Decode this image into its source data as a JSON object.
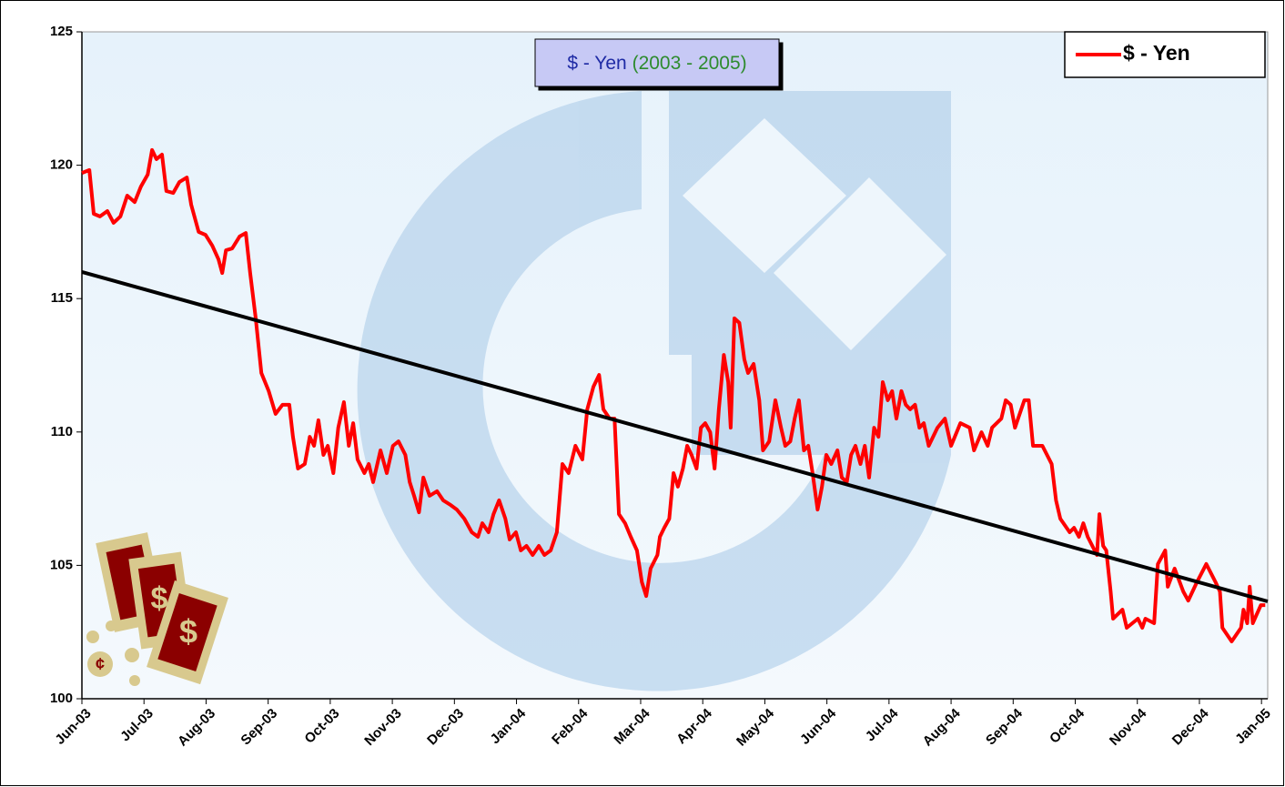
{
  "chart_data": {
    "type": "line",
    "title": "$ - Yen",
    "title_suffix": "(2003 - 2005)",
    "legend": "top-right",
    "ylim": [
      100,
      125
    ],
    "yticks": [
      100,
      105,
      110,
      115,
      120,
      125
    ],
    "xlim": [
      0,
      19.1
    ],
    "xticks": [
      {
        "value": 0,
        "label": "Jun-03"
      },
      {
        "value": 1,
        "label": "Jul-03"
      },
      {
        "value": 2,
        "label": "Aug-03"
      },
      {
        "value": 3,
        "label": "Sep-03"
      },
      {
        "value": 4,
        "label": "Oct-03"
      },
      {
        "value": 5,
        "label": "Nov-03"
      },
      {
        "value": 6,
        "label": "Dec-03"
      },
      {
        "value": 7,
        "label": "Jan-04"
      },
      {
        "value": 8,
        "label": "Feb-04"
      },
      {
        "value": 9,
        "label": "Mar-04"
      },
      {
        "value": 10,
        "label": "Apr-04"
      },
      {
        "value": 11,
        "label": "May-04"
      },
      {
        "value": 12,
        "label": "Jun-04"
      },
      {
        "value": 13,
        "label": "Jul-04"
      },
      {
        "value": 14,
        "label": "Aug-04"
      },
      {
        "value": 15,
        "label": "Sep-04"
      },
      {
        "value": 16,
        "label": "Oct-04"
      },
      {
        "value": 17,
        "label": "Nov-04"
      },
      {
        "value": 18,
        "label": "Dec-04"
      },
      {
        "value": 19,
        "label": "Jan-05"
      }
    ],
    "series": [
      {
        "name": "$ - Yen",
        "color": "#ff0000",
        "x": [
          0,
          0.12,
          0.19,
          0.29,
          0.41,
          0.51,
          0.62,
          0.73,
          0.85,
          0.95,
          1.06,
          1.13,
          1.2,
          1.29,
          1.36,
          1.47,
          1.57,
          1.69,
          1.76,
          1.88,
          1.99,
          2.1,
          2.2,
          2.26,
          2.32,
          2.42,
          2.54,
          2.64,
          2.71,
          2.8,
          2.89,
          3.01,
          3.12,
          3.23,
          3.34,
          3.4,
          3.48,
          3.59,
          3.67,
          3.74,
          3.81,
          3.89,
          3.96,
          4.05,
          4.13,
          4.22,
          4.3,
          4.37,
          4.44,
          4.55,
          4.62,
          4.69,
          4.81,
          4.91,
          5.01,
          5.1,
          5.21,
          5.28,
          5.35,
          5.43,
          5.5,
          5.6,
          5.72,
          5.82,
          5.94,
          6.04,
          6.16,
          6.28,
          6.38,
          6.45,
          6.55,
          6.63,
          6.72,
          6.82,
          6.89,
          6.99,
          7.07,
          7.16,
          7.26,
          7.36,
          7.45,
          7.55,
          7.65,
          7.74,
          7.84,
          7.95,
          8.06,
          8.14,
          8.24,
          8.33,
          8.4,
          8.5,
          8.58,
          8.65,
          8.75,
          8.84,
          8.94,
          9.02,
          9.09,
          9.16,
          9.27,
          9.31,
          9.38,
          9.46,
          9.53,
          9.6,
          9.68,
          9.75,
          9.82,
          9.9,
          9.97,
          10.04,
          10.12,
          10.19,
          10.26,
          10.34,
          10.41,
          10.45,
          10.51,
          10.59,
          10.67,
          10.73,
          10.82,
          10.91,
          10.97,
          11.07,
          11.17,
          11.26,
          11.33,
          11.41,
          11.48,
          11.55,
          11.63,
          11.7,
          11.77,
          11.85,
          11.92,
          11.99,
          12.07,
          12.17,
          12.24,
          12.32,
          12.39,
          12.46,
          12.54,
          12.61,
          12.68,
          12.76,
          12.83,
          12.9,
          12.98,
          13.05,
          13.12,
          13.2,
          13.27,
          13.34,
          13.42,
          13.49,
          13.56,
          13.64,
          13.78,
          13.9,
          14,
          14.15,
          14.3,
          14.37,
          14.49,
          14.59,
          14.66,
          14.81,
          14.88,
          14.96,
          15.03,
          15.18,
          15.25,
          15.32,
          15.47,
          15.62,
          15.69,
          15.76,
          15.91,
          15.98,
          16.06,
          16.13,
          16.2,
          16.35,
          16.39,
          16.45,
          16.5,
          16.57,
          16.61,
          16.76,
          16.83,
          17.01,
          17.08,
          17.13,
          17.27,
          17.33,
          17.45,
          17.49,
          17.6,
          17.74,
          17.82,
          17.96,
          18.11,
          18.26,
          18.33,
          18.37,
          18.52,
          18.67,
          18.71,
          18.77,
          18.81,
          18.86,
          18.99,
          19.06
        ],
        "values": [
          119.71,
          119.82,
          118.18,
          118.08,
          118.28,
          117.84,
          118.08,
          118.86,
          118.62,
          119.2,
          119.65,
          120.57,
          120.23,
          120.4,
          119.03,
          118.96,
          119.37,
          119.54,
          118.52,
          117.5,
          117.39,
          116.98,
          116.47,
          115.96,
          116.81,
          116.88,
          117.33,
          117.46,
          115.96,
          114.26,
          112.21,
          111.53,
          110.68,
          111.02,
          111.02,
          109.82,
          108.63,
          108.8,
          109.82,
          109.48,
          110.44,
          109.14,
          109.48,
          108.46,
          110.16,
          111.12,
          109.48,
          110.33,
          108.97,
          108.46,
          108.8,
          108.12,
          109.31,
          108.46,
          109.48,
          109.65,
          109.14,
          108.12,
          107.61,
          106.99,
          108.29,
          107.61,
          107.78,
          107.44,
          107.26,
          107.09,
          106.75,
          106.24,
          106.07,
          106.58,
          106.24,
          106.92,
          107.44,
          106.75,
          105.97,
          106.24,
          105.56,
          105.73,
          105.39,
          105.73,
          105.39,
          105.56,
          106.24,
          108.8,
          108.46,
          109.48,
          108.97,
          110.85,
          111.7,
          112.14,
          110.85,
          110.5,
          110.5,
          106.92,
          106.58,
          106.07,
          105.56,
          104.37,
          103.85,
          104.88,
          105.39,
          106.07,
          106.41,
          106.75,
          108.46,
          107.95,
          108.63,
          109.48,
          109.14,
          108.63,
          110.16,
          110.33,
          109.99,
          108.63,
          110.85,
          112.89,
          111.87,
          110.16,
          114.26,
          114.09,
          112.72,
          112.21,
          112.55,
          111.19,
          109.31,
          109.65,
          111.19,
          110.16,
          109.48,
          109.65,
          110.5,
          111.19,
          109.31,
          109.48,
          108.46,
          107.09,
          107.95,
          109.14,
          108.8,
          109.31,
          108.29,
          108.12,
          109.14,
          109.48,
          108.8,
          109.48,
          108.29,
          110.16,
          109.82,
          111.87,
          111.19,
          111.53,
          110.5,
          111.53,
          111.02,
          110.85,
          111.02,
          110.16,
          110.33,
          109.48,
          110.16,
          110.5,
          109.48,
          110.33,
          110.16,
          109.31,
          109.99,
          109.48,
          110.16,
          110.5,
          111.19,
          111.02,
          110.16,
          111.19,
          111.19,
          109.48,
          109.48,
          108.8,
          107.44,
          106.75,
          106.24,
          106.41,
          106.07,
          106.58,
          106.07,
          105.39,
          106.92,
          105.73,
          105.56,
          104.02,
          103,
          103.34,
          102.66,
          103,
          102.66,
          103,
          102.83,
          105.05,
          105.56,
          104.2,
          104.88,
          104.02,
          103.68,
          104.37,
          105.05,
          104.37,
          104.02,
          102.66,
          102.15,
          102.66,
          103.34,
          102.83,
          104.2,
          102.83,
          103.51,
          103.51
        ]
      }
    ],
    "trendline": {
      "color": "#000000",
      "x": [
        0,
        19.1
      ],
      "values": [
        116,
        103.65
      ]
    }
  }
}
